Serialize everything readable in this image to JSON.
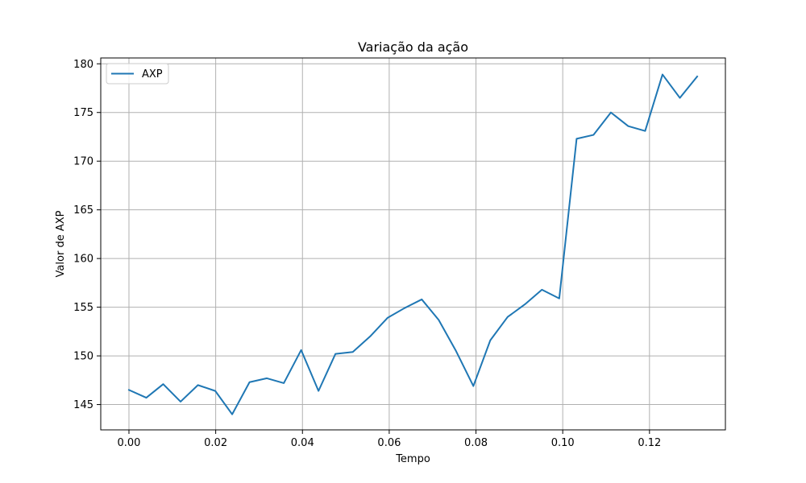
{
  "chart_data": {
    "type": "line",
    "title": "Variação da ação",
    "xlabel": "Tempo",
    "ylabel": "Valor de AXP",
    "xlim": [
      -0.0065,
      0.1375
    ],
    "ylim": [
      142.4,
      180.6
    ],
    "x_ticks": [
      0.0,
      0.02,
      0.04,
      0.06,
      0.08,
      0.1,
      0.12
    ],
    "x_tick_labels": [
      "0.00",
      "0.02",
      "0.04",
      "0.06",
      "0.08",
      "0.10",
      "0.12"
    ],
    "y_ticks": [
      145,
      150,
      155,
      160,
      165,
      170,
      175,
      180
    ],
    "y_tick_labels": [
      "145",
      "150",
      "155",
      "160",
      "165",
      "170",
      "175",
      "180"
    ],
    "grid": true,
    "legend_position": "top-left",
    "series": [
      {
        "name": "AXP",
        "color": "#1f77b4",
        "x": [
          0.0,
          0.004,
          0.0079,
          0.0119,
          0.0159,
          0.0199,
          0.0238,
          0.0278,
          0.0318,
          0.0357,
          0.0397,
          0.0437,
          0.0476,
          0.0516,
          0.0556,
          0.0596,
          0.0635,
          0.0675,
          0.0714,
          0.0754,
          0.0794,
          0.0833,
          0.0873,
          0.0913,
          0.0952,
          0.0992,
          0.1032,
          0.1071,
          0.1111,
          0.1151,
          0.119,
          0.123,
          0.127,
          0.131
        ],
        "y": [
          146.5,
          145.7,
          147.1,
          145.3,
          147.0,
          146.4,
          144.0,
          147.3,
          147.7,
          147.2,
          150.6,
          146.4,
          150.2,
          150.4,
          152.0,
          153.9,
          154.9,
          155.8,
          153.7,
          150.5,
          146.9,
          151.6,
          154.0,
          155.3,
          156.8,
          155.9,
          172.3,
          172.7,
          175.0,
          173.6,
          173.1,
          178.9,
          176.5,
          178.7
        ]
      }
    ]
  }
}
